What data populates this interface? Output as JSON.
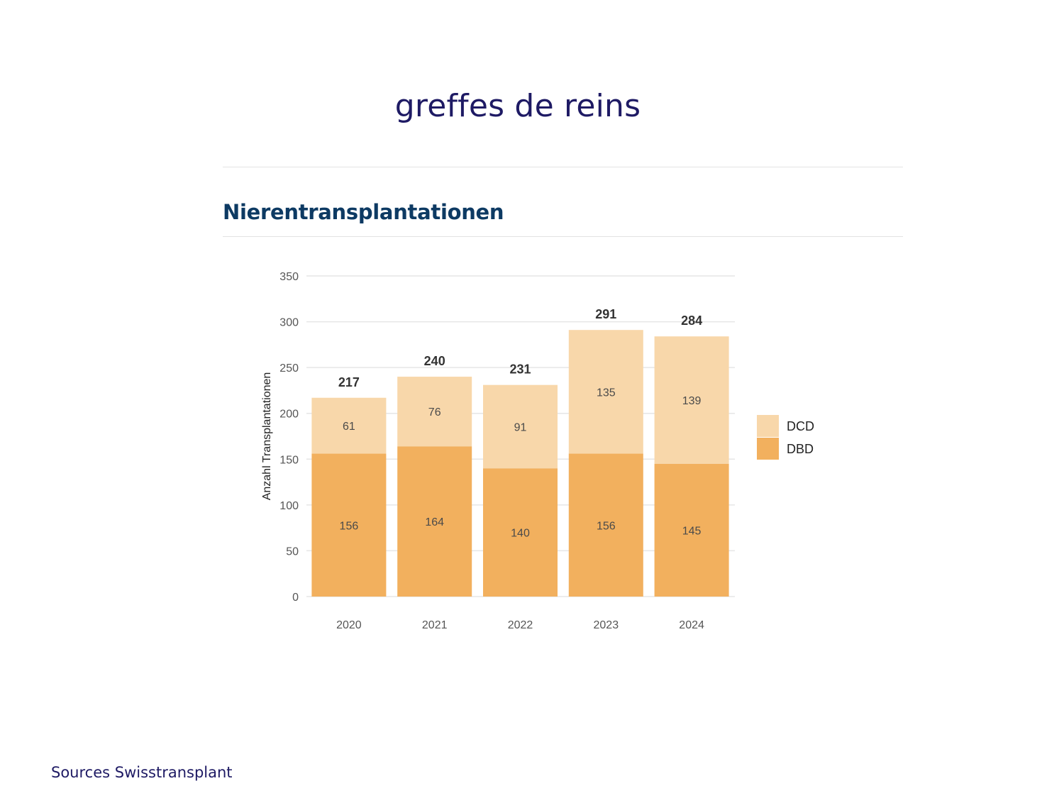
{
  "slide": {
    "title": "greffes de reins",
    "source": "Sources Swisstransplant"
  },
  "chart_data": {
    "type": "bar",
    "stacked": true,
    "title": "Nierentransplantationen",
    "xlabel": "",
    "ylabel": "Anzahl Transplantationen",
    "categories": [
      "2020",
      "2021",
      "2022",
      "2023",
      "2024"
    ],
    "series": [
      {
        "name": "DBD",
        "values": [
          156,
          164,
          140,
          156,
          145
        ],
        "color": "#f2b05e"
      },
      {
        "name": "DCD",
        "values": [
          61,
          76,
          91,
          135,
          139
        ],
        "color": "#f8d7aa"
      }
    ],
    "totals": [
      217,
      240,
      231,
      291,
      284
    ],
    "legend_order": [
      "DCD",
      "DBD"
    ],
    "ylim": [
      0,
      350
    ],
    "yticks": [
      0,
      50,
      100,
      150,
      200,
      250,
      300,
      350
    ],
    "grid": true,
    "legend_position": "right"
  }
}
